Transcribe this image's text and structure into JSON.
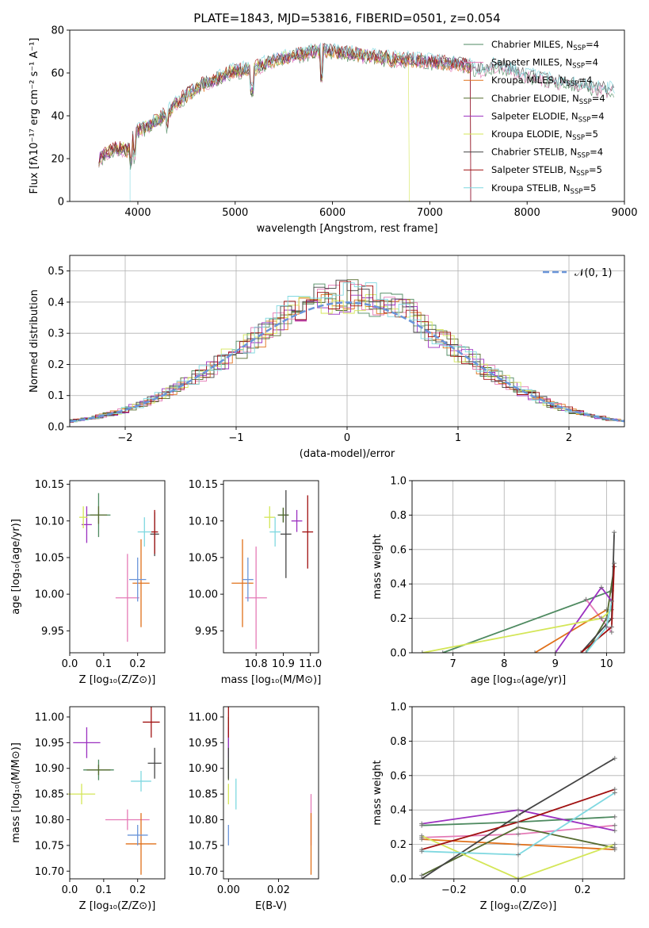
{
  "colors": {
    "chabrier_miles": "#4e8a60",
    "salpeter_miles": "#e47ab6",
    "kroupa_miles": "#e0701a",
    "chabrier_elodie": "#556b2f",
    "salpeter_elodie": "#9b30c0",
    "kroupa_elodie": "#d4e657",
    "chabrier_stelib": "#444444",
    "salpeter_stelib": "#a01010",
    "kroupa_stelib": "#7fd8e0",
    "gaussian": "#6a95d9"
  },
  "chart_data": [
    {
      "id": "spectrum",
      "type": "line",
      "title": "PLATE=1843, MJD=53816, FIBERID=0501, z=0.054",
      "xlabel": "wavelength [Angstrom, rest frame]",
      "ylabel": "Flux [fλ10⁻¹⁷ erg cm⁻² s⁻¹ A⁻¹]",
      "xlim": [
        3300,
        9000
      ],
      "ylim": [
        0,
        80
      ],
      "xticks": [
        "4000",
        "5000",
        "6000",
        "7000",
        "8000",
        "9000"
      ],
      "yticks": [
        "0",
        "20",
        "40",
        "60",
        "80"
      ],
      "continuum": {
        "x": [
          3600,
          3700,
          3800,
          3900,
          3950,
          4000,
          4100,
          4200,
          4300,
          4400,
          4600,
          4800,
          5000,
          5200,
          5400,
          5600,
          5800,
          5900,
          6000,
          6200,
          6500,
          6800,
          7100,
          7300,
          7400,
          7500,
          7700,
          7900,
          8100,
          8300,
          8500,
          8700,
          8900
        ],
        "y": [
          20,
          23,
          25,
          24,
          30,
          33,
          35,
          38,
          41,
          46,
          53,
          57,
          61,
          62,
          66,
          68,
          70,
          71,
          70,
          69,
          67,
          66,
          65,
          64,
          63,
          61,
          64,
          60,
          58,
          56,
          55,
          53,
          52
        ]
      },
      "legend": [
        {
          "name": "Chabrier MILES",
          "ssp": "4"
        },
        {
          "name": "Salpeter MILES",
          "ssp": "4"
        },
        {
          "name": "Kroupa MILES",
          "ssp": "4"
        },
        {
          "name": "Chabrier ELODIE",
          "ssp": "4"
        },
        {
          "name": "Salpeter ELODIE",
          "ssp": "4"
        },
        {
          "name": "Kroupa ELODIE",
          "ssp": "5"
        },
        {
          "name": "Chabrier STELIB",
          "ssp": "4"
        },
        {
          "name": "Salpeter STELIB",
          "ssp": "5"
        },
        {
          "name": "Kroupa STELIB",
          "ssp": "5"
        }
      ],
      "legend_subscript": "SSP",
      "legend_prefix": "N",
      "legend_location": "upper right"
    },
    {
      "id": "residuals",
      "type": "histogram",
      "xlabel": "(data-model)/error",
      "ylabel": "Normed distribution",
      "xlim": [
        -2.5,
        2.5
      ],
      "ylim": [
        0,
        0.55
      ],
      "xticks": [
        "−2",
        "−1",
        "0",
        "1",
        "2"
      ],
      "yticks": [
        "0.0",
        "0.1",
        "0.2",
        "0.3",
        "0.4",
        "0.5"
      ],
      "grid": true,
      "reference_curve": "𝒩(0, 1)"
    },
    {
      "id": "age_vs_z",
      "type": "scatter",
      "xlabel": "Z [log₁₀(Z/Z⊙)]",
      "ylabel": "age  [log₁₀(age/yr)]",
      "xlim": [
        0.0,
        0.28
      ],
      "ylim": [
        9.92,
        10.155
      ],
      "xticks": [
        "0.0",
        "0.1",
        "0.2"
      ],
      "yticks": [
        "9.95",
        "10.00",
        "10.05",
        "10.10",
        "10.15"
      ],
      "points": [
        {
          "x": 0.085,
          "y": 10.108,
          "xe": 0.035,
          "ye": 0.03
        },
        {
          "x": 0.17,
          "y": 9.995,
          "xe": 0.035,
          "ye": 0.06
        },
        {
          "x": 0.21,
          "y": 10.015,
          "xe": 0.025,
          "ye": 0.06
        },
        {
          "x": 0.085,
          "y": 10.108,
          "xe": 0.025,
          "ye": 0.012
        },
        {
          "x": 0.05,
          "y": 10.095,
          "xe": 0.015,
          "ye": 0.025
        },
        {
          "x": 0.04,
          "y": 10.105,
          "xe": 0.012,
          "ye": 0.015
        },
        {
          "x": 0.25,
          "y": 10.082,
          "xe": 0.013,
          "ye": 0.03
        },
        {
          "x": 0.25,
          "y": 10.085,
          "xe": 0.01,
          "ye": 0.03
        },
        {
          "x": 0.22,
          "y": 10.085,
          "xe": 0.02,
          "ye": 0.02
        },
        {
          "x": 0.2,
          "y": 10.02,
          "xe": 0.025,
          "ye": 0.03
        }
      ]
    },
    {
      "id": "age_vs_mass",
      "type": "scatter",
      "xlabel": "mass [log₁₀(M/M⊙)]",
      "xlim": [
        10.68,
        11.03
      ],
      "ylim": [
        9.92,
        10.155
      ],
      "xticks": [
        "10.8",
        "10.9",
        "11.0"
      ],
      "yticks": [
        "9.95",
        "10.00",
        "10.05",
        "10.10",
        "10.15"
      ],
      "points": [
        {
          "x": 10.9,
          "y": 10.108,
          "xe": 0.02,
          "ye": 0.01
        },
        {
          "x": 10.8,
          "y": 9.995,
          "xe": 0.04,
          "ye": 0.07
        },
        {
          "x": 10.75,
          "y": 10.015,
          "xe": 0.04,
          "ye": 0.06
        },
        {
          "x": 10.9,
          "y": 10.108,
          "xe": 0.02,
          "ye": 0.01
        },
        {
          "x": 10.95,
          "y": 10.1,
          "xe": 0.02,
          "ye": 0.015
        },
        {
          "x": 10.85,
          "y": 10.105,
          "xe": 0.02,
          "ye": 0.015
        },
        {
          "x": 10.91,
          "y": 10.082,
          "xe": 0.02,
          "ye": 0.06
        },
        {
          "x": 10.99,
          "y": 10.085,
          "xe": 0.02,
          "ye": 0.05
        },
        {
          "x": 10.87,
          "y": 10.085,
          "xe": 0.02,
          "ye": 0.02
        },
        {
          "x": 10.77,
          "y": 10.02,
          "xe": 0.02,
          "ye": 0.03
        }
      ]
    },
    {
      "id": "mass_weight_vs_age",
      "type": "line",
      "xlabel": "age  [log₁₀(age/yr)]",
      "ylabel": "mass weight",
      "xlim": [
        6.2,
        10.35
      ],
      "ylim": [
        0,
        1.0
      ],
      "xticks": [
        "7",
        "8",
        "9",
        "10"
      ],
      "yticks": [
        "0.0",
        "0.2",
        "0.4",
        "0.6",
        "0.8",
        "1.0"
      ],
      "grid": true,
      "series": [
        {
          "x": [
            6.8,
            10.1
          ],
          "y": [
            0.0,
            0.36
          ]
        },
        {
          "x": [
            9.6,
            10.1
          ],
          "y": [
            0.31,
            0.12
          ]
        },
        {
          "x": [
            8.6,
            10.0
          ],
          "y": [
            0.0,
            0.25
          ]
        },
        {
          "x": [
            9.6,
            10.0,
            10.15
          ],
          "y": [
            0.0,
            0.2,
            0.5
          ]
        },
        {
          "x": [
            9.0,
            9.9,
            10.1
          ],
          "y": [
            0.0,
            0.38,
            0.3
          ]
        },
        {
          "x": [
            6.4,
            9.9,
            10.1
          ],
          "y": [
            0.0,
            0.2,
            0.25
          ]
        },
        {
          "x": [
            9.5,
            10.1,
            10.15
          ],
          "y": [
            0.0,
            0.2,
            0.7
          ]
        },
        {
          "x": [
            9.5,
            10.1,
            10.15
          ],
          "y": [
            0.0,
            0.15,
            0.52
          ]
        },
        {
          "x": [
            9.6,
            10.0,
            10.1
          ],
          "y": [
            0.0,
            0.15,
            0.3
          ]
        }
      ]
    },
    {
      "id": "mass_vs_z",
      "type": "scatter",
      "xlabel": "Z [log₁₀(Z/Z⊙)]",
      "ylabel": "mass [log₁₀(M/M⊙)]",
      "xlim": [
        0.0,
        0.28
      ],
      "ylim": [
        10.685,
        11.02
      ],
      "xticks": [
        "0.0",
        "0.1",
        "0.2"
      ],
      "yticks": [
        "10.70",
        "10.75",
        "10.80",
        "10.85",
        "10.90",
        "10.95",
        "11.00"
      ],
      "points": [
        {
          "x": 0.085,
          "y": 10.897,
          "xe": 0.045,
          "ye": 0.02
        },
        {
          "x": 0.17,
          "y": 10.8,
          "xe": 0.065,
          "ye": 0.02
        },
        {
          "x": 0.21,
          "y": 10.753,
          "xe": 0.045,
          "ye": 0.06
        },
        {
          "x": 0.085,
          "y": 10.897,
          "xe": 0.035,
          "ye": 0.01
        },
        {
          "x": 0.05,
          "y": 10.95,
          "xe": 0.04,
          "ye": 0.03
        },
        {
          "x": 0.035,
          "y": 10.85,
          "xe": 0.04,
          "ye": 0.02
        },
        {
          "x": 0.25,
          "y": 10.91,
          "xe": 0.02,
          "ye": 0.03
        },
        {
          "x": 0.24,
          "y": 10.99,
          "xe": 0.025,
          "ye": 0.03
        },
        {
          "x": 0.21,
          "y": 10.875,
          "xe": 0.03,
          "ye": 0.02
        },
        {
          "x": 0.2,
          "y": 10.77,
          "xe": 0.03,
          "ye": 0.02
        }
      ]
    },
    {
      "id": "mass_vs_ebv",
      "type": "scatter",
      "xlabel": "E(B-V)",
      "xlim": [
        -0.002,
        0.036
      ],
      "ylim": [
        10.685,
        11.02
      ],
      "xticks": [
        "0.00",
        "0.02"
      ],
      "yticks": [
        "10.70",
        "10.75",
        "10.80",
        "10.85",
        "10.90",
        "10.95",
        "11.00"
      ],
      "points": [
        {
          "x": 0.0,
          "y": 10.95,
          "xe": 0.0,
          "ye": 0.05
        },
        {
          "x": 0.033,
          "y": 10.8,
          "xe": 0.0,
          "ye": 0.05
        },
        {
          "x": 0.033,
          "y": 10.753,
          "xe": 0.0,
          "ye": 0.06
        },
        {
          "x": 0.0,
          "y": 10.897,
          "xe": 0.0,
          "ye": 0.02
        },
        {
          "x": 0.0,
          "y": 10.95,
          "xe": 0.0,
          "ye": 0.03
        },
        {
          "x": 0.0,
          "y": 10.85,
          "xe": 0.0,
          "ye": 0.02
        },
        {
          "x": 0.0,
          "y": 10.91,
          "xe": 0.0,
          "ye": 0.03
        },
        {
          "x": 0.0,
          "y": 10.99,
          "xe": 0.0,
          "ye": 0.03
        },
        {
          "x": 0.003,
          "y": 10.85,
          "xe": 0.0,
          "ye": 0.03
        },
        {
          "x": 0.0,
          "y": 10.77,
          "xe": 0.0,
          "ye": 0.02
        }
      ]
    },
    {
      "id": "mass_weight_vs_z",
      "type": "line",
      "xlabel": "Z [log₁₀(Z/Z⊙)]",
      "ylabel": "mass weight",
      "xlim": [
        -0.33,
        0.33
      ],
      "ylim": [
        0,
        1.0
      ],
      "xticks": [
        "−0.2",
        "0.0",
        "0.2"
      ],
      "yticks": [
        "0.0",
        "0.2",
        "0.4",
        "0.6",
        "0.8",
        "1.0"
      ],
      "grid": true,
      "series": [
        {
          "x": [
            -0.3,
            0.0,
            0.3
          ],
          "y": [
            0.31,
            0.33,
            0.36
          ]
        },
        {
          "x": [
            -0.3,
            0.0,
            0.3
          ],
          "y": [
            0.24,
            0.26,
            0.31
          ]
        },
        {
          "x": [
            -0.3,
            0.0,
            0.3
          ],
          "y": [
            0.23,
            0.2,
            0.17
          ]
        },
        {
          "x": [
            -0.3,
            0.0,
            0.3
          ],
          "y": [
            0.02,
            0.3,
            0.18
          ]
        },
        {
          "x": [
            -0.3,
            0.0,
            0.3
          ],
          "y": [
            0.32,
            0.4,
            0.28
          ]
        },
        {
          "x": [
            -0.3,
            0.0,
            0.3
          ],
          "y": [
            0.25,
            0.0,
            0.2
          ]
        },
        {
          "x": [
            -0.3,
            0.0,
            0.3
          ],
          "y": [
            0.0,
            0.37,
            0.7
          ]
        },
        {
          "x": [
            -0.3,
            0.0,
            0.3
          ],
          "y": [
            0.17,
            0.33,
            0.52
          ]
        },
        {
          "x": [
            -0.3,
            0.0,
            0.3
          ],
          "y": [
            0.16,
            0.14,
            0.5
          ]
        }
      ]
    }
  ]
}
